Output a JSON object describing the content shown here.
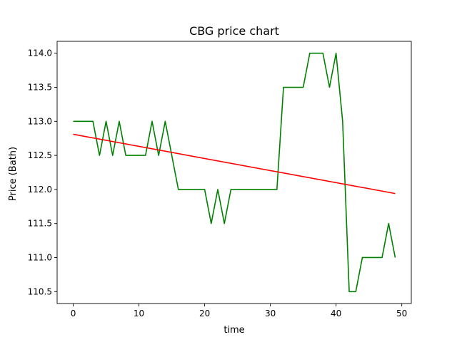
{
  "chart_data": {
    "type": "line",
    "title": "CBG price chart",
    "xlabel": "time",
    "ylabel": "Price (Bath)",
    "xlim": [
      -2.45,
      51.45
    ],
    "ylim": [
      110.325,
      114.175
    ],
    "xticks": [
      0,
      10,
      20,
      30,
      40,
      50
    ],
    "yticks": [
      110.5,
      111.0,
      111.5,
      112.0,
      112.5,
      113.0,
      113.5,
      114.0
    ],
    "ytick_labels": [
      "110.5",
      "111.0",
      "111.5",
      "112.0",
      "112.5",
      "113.0",
      "113.5",
      "114.0"
    ],
    "grid": false,
    "legend": "none",
    "series": [
      {
        "color": "#008000",
        "x": [
          0,
          1,
          2,
          3,
          4,
          5,
          6,
          7,
          8,
          9,
          10,
          11,
          12,
          13,
          14,
          15,
          16,
          17,
          18,
          19,
          20,
          21,
          22,
          23,
          24,
          25,
          26,
          27,
          28,
          29,
          30,
          31,
          32,
          33,
          34,
          35,
          36,
          37,
          38,
          39,
          40,
          41,
          42,
          43,
          44,
          45,
          46,
          47,
          48,
          49
        ],
        "values": [
          113.0,
          113.0,
          113.0,
          113.0,
          112.5,
          113.0,
          112.5,
          113.0,
          112.5,
          112.5,
          112.5,
          112.5,
          113.0,
          112.5,
          113.0,
          112.5,
          112.0,
          112.0,
          112.0,
          112.0,
          112.0,
          111.5,
          112.0,
          111.5,
          112.0,
          112.0,
          112.0,
          112.0,
          112.0,
          112.0,
          112.0,
          112.0,
          113.5,
          113.5,
          113.5,
          113.5,
          114.0,
          114.0,
          114.0,
          113.5,
          114.0,
          113.0,
          110.5,
          110.5,
          111.0,
          111.0,
          111.0,
          111.0,
          111.5,
          111.0
        ]
      },
      {
        "color": "#ff0000",
        "x": [
          0,
          49
        ],
        "values": [
          112.81,
          111.94
        ]
      }
    ]
  }
}
